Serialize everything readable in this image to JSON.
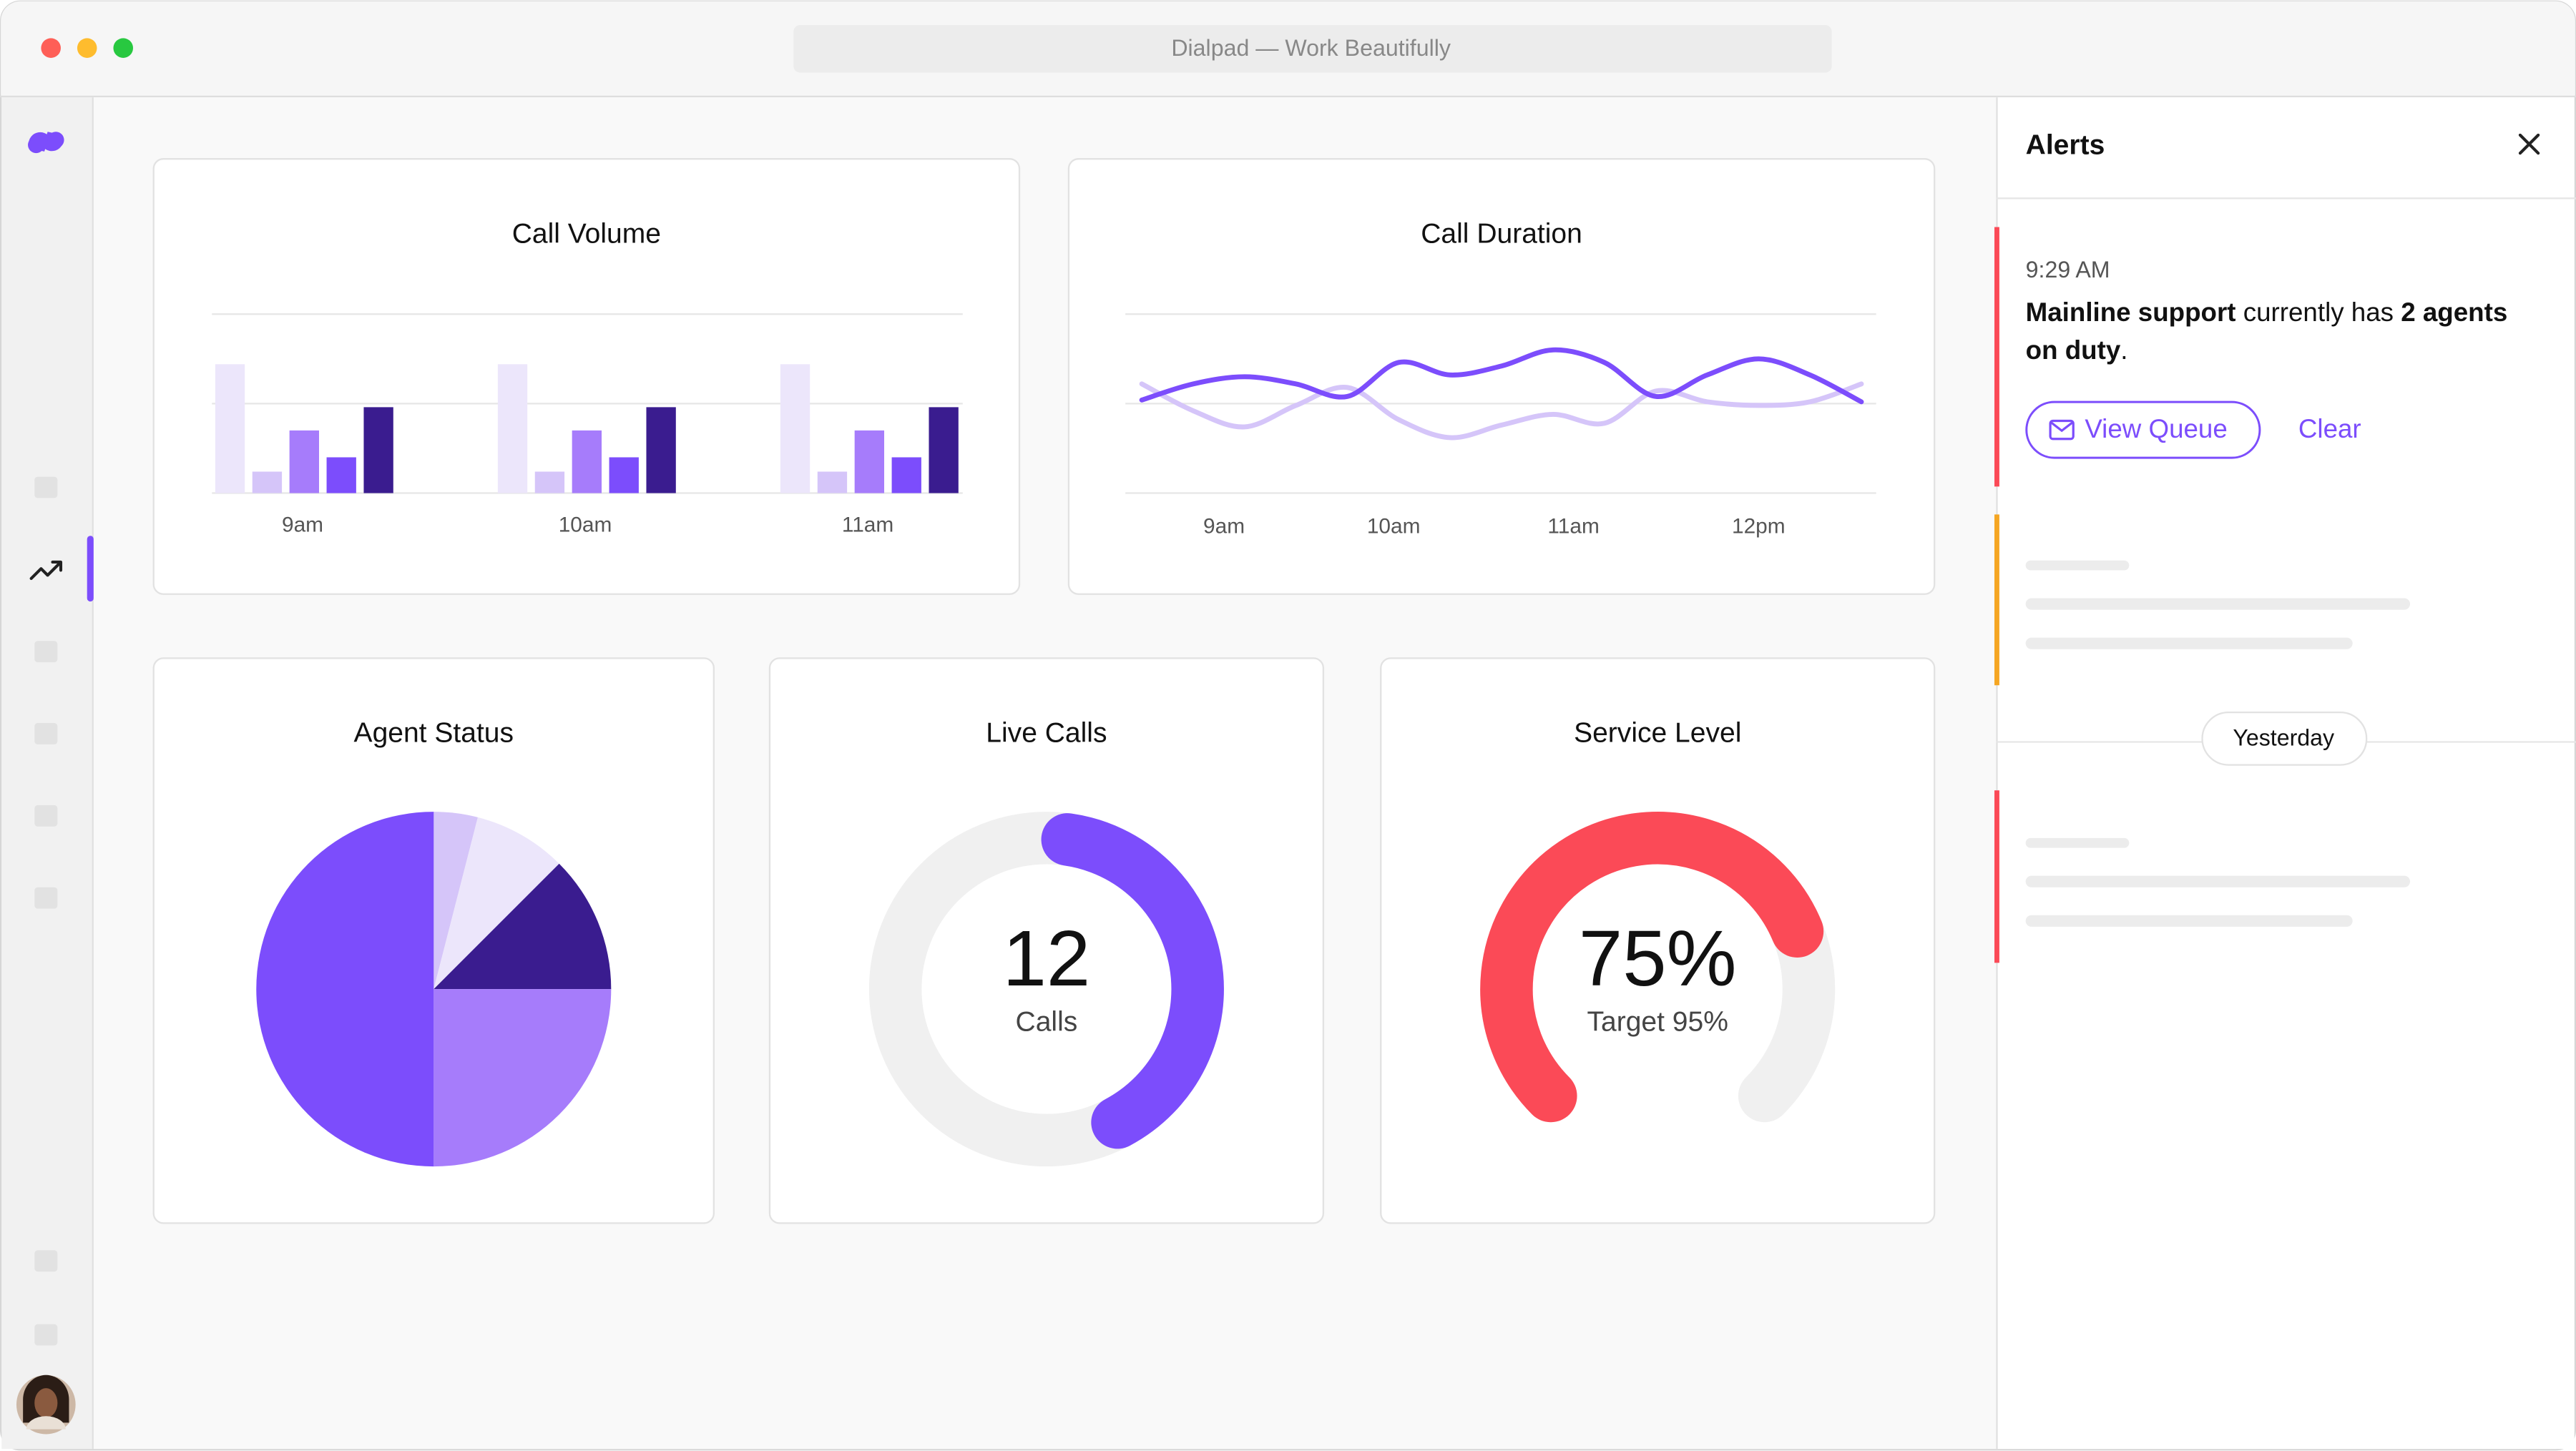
{
  "window": {
    "title": "Dialpad — Work Beautifully"
  },
  "chart_data": [
    {
      "type": "bar",
      "title": "Call Volume",
      "categories": [
        "9am",
        "10am",
        "11am"
      ],
      "series": [
        {
          "color": "#ece6fb",
          "values": [
            72,
            72,
            72
          ]
        },
        {
          "color": "#d5c5f9",
          "values": [
            12,
            12,
            12
          ]
        },
        {
          "color": "#a67cfb",
          "values": [
            35,
            35,
            35
          ]
        },
        {
          "color": "#7c4dfc",
          "values": [
            20,
            20,
            20
          ]
        },
        {
          "color": "#3a1c8f",
          "values": [
            48,
            48,
            48
          ]
        }
      ],
      "ylim": [
        0,
        100
      ],
      "yticks": [
        0,
        50,
        100
      ],
      "grid": true
    },
    {
      "type": "line",
      "title": "Call Duration",
      "x": [
        0,
        1,
        2,
        3,
        4,
        5,
        6,
        7,
        8,
        9,
        10,
        11,
        12,
        13,
        14
      ],
      "xlim": [
        0,
        14
      ],
      "xticks": [
        {
          "value": 1.6,
          "label": "9am"
        },
        {
          "value": 4.9,
          "label": "10am"
        },
        {
          "value": 8.4,
          "label": "11am"
        },
        {
          "value": 12,
          "label": "12pm"
        }
      ],
      "series": [
        {
          "color": "#d5c5f9",
          "values": [
            61,
            46,
            37,
            49,
            59,
            41,
            31,
            38,
            44,
            39,
            57,
            51,
            49,
            51,
            61
          ]
        },
        {
          "color": "#7c4dfc",
          "values": [
            52,
            61,
            65,
            61,
            54,
            73,
            66,
            71,
            80,
            73,
            54,
            66,
            75,
            66,
            51
          ]
        }
      ],
      "ylim": [
        0,
        100
      ],
      "yticks": [
        0,
        50,
        100
      ],
      "grid": true
    },
    {
      "type": "pie",
      "title": "Agent Status",
      "values": [
        4,
        8.5,
        12.5,
        25,
        50
      ],
      "colors": [
        "#d5c5f9",
        "#ece6fb",
        "#3a1c8f",
        "#a67cfb",
        "#7c4dfc"
      ]
    },
    {
      "type": "donut",
      "title": "Live Calls",
      "value": 12,
      "max": 30,
      "label": "Calls",
      "color": "#7c4dfc"
    },
    {
      "type": "gauge",
      "title": "Service Level",
      "value": 75,
      "value_label": "75%",
      "subtitle": "Target 95%",
      "color": "#fb4a57"
    }
  ],
  "alerts": {
    "title": "Alerts",
    "time": "9:29 AM",
    "message_line1": [
      "Mainline support",
      " currently has ",
      "2 agents"
    ],
    "message_line2": [
      "on duty",
      "."
    ],
    "primary_button": "View Queue",
    "secondary_button": "Clear",
    "divider": "Yesterday"
  }
}
